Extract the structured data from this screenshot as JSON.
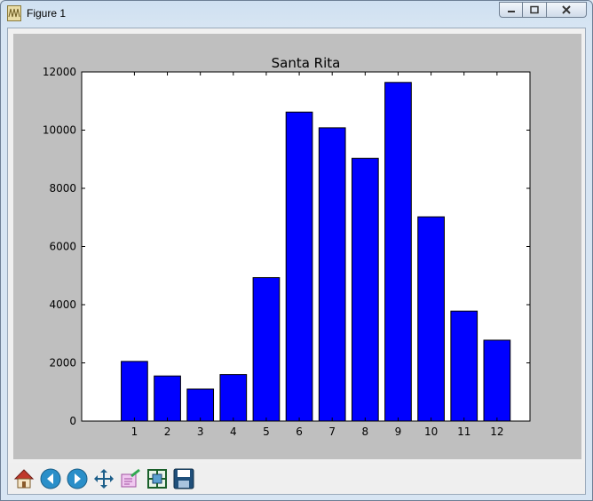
{
  "window": {
    "title": "Figure 1"
  },
  "colors": {
    "bar": "#0000ff",
    "canvas_bg": "#bfbfbf",
    "axes_bg": "#ffffff"
  },
  "toolbar": {
    "icons": [
      "home-icon",
      "back-icon",
      "forward-icon",
      "pan-icon",
      "subplots-icon",
      "zoom-icon",
      "save-icon"
    ]
  },
  "chart_data": {
    "type": "bar",
    "title": "Santa Rita",
    "xlabel": "",
    "ylabel": "",
    "categories": [
      "1",
      "2",
      "3",
      "4",
      "5",
      "6",
      "7",
      "8",
      "9",
      "10",
      "11",
      "12"
    ],
    "values": [
      2050,
      1550,
      1100,
      1600,
      4930,
      10620,
      10080,
      9030,
      11640,
      7020,
      3780,
      2780
    ],
    "ylim": [
      0,
      12000
    ],
    "yticks": [
      0,
      2000,
      4000,
      6000,
      8000,
      10000,
      12000
    ],
    "grid": false
  }
}
